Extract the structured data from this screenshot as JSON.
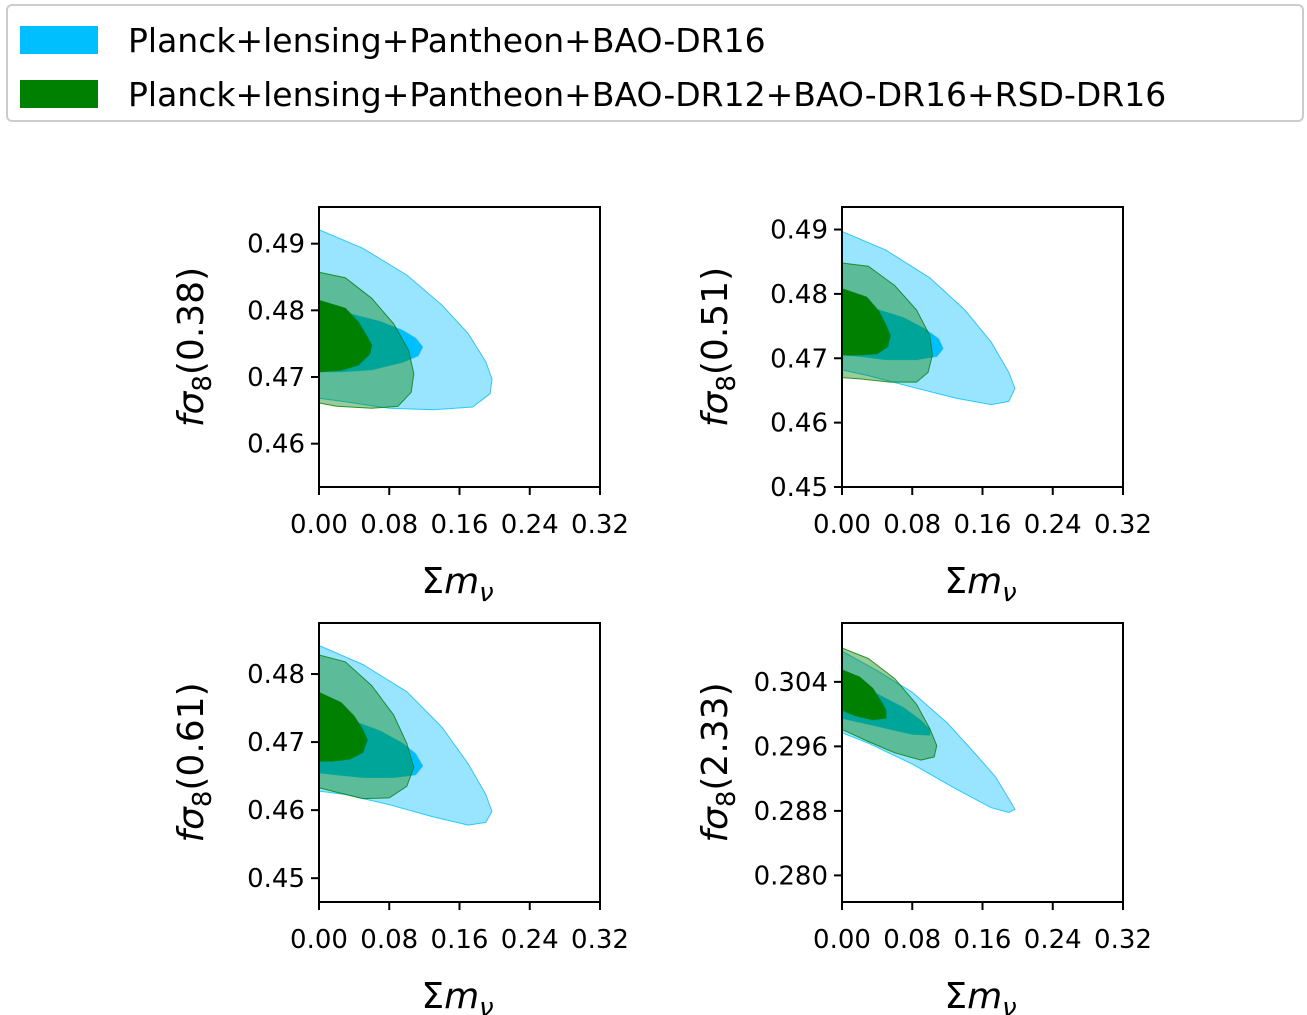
{
  "legend": {
    "items": [
      {
        "label": "Planck+lensing+Pantheon+BAO-DR16",
        "color": "#00bfff"
      },
      {
        "label": "Planck+lensing+Pantheon+BAO-DR12+BAO-DR16+RSD-DR16",
        "color": "#008000"
      }
    ]
  },
  "chart_data": [
    {
      "type": "contour",
      "xlabel": "Σm_ν",
      "ylabel": "fσ8(0.38)",
      "xlim": [
        0.0,
        0.32
      ],
      "ylim": [
        0.4535,
        0.4955
      ],
      "xticks": [
        "0.00",
        "0.08",
        "0.16",
        "0.24",
        "0.32"
      ],
      "yticks": [
        "0.46",
        "0.47",
        "0.48",
        "0.49"
      ],
      "contours": [
        {
          "series": "Planck+lensing+Pantheon+BAO-DR16",
          "level": "95%",
          "points": [
            [
              0,
              0.4921
            ],
            [
              0.05,
              0.4893
            ],
            [
              0.1,
              0.4853
            ],
            [
              0.14,
              0.4808
            ],
            [
              0.17,
              0.4765
            ],
            [
              0.19,
              0.4723
            ],
            [
              0.197,
              0.4697
            ],
            [
              0.195,
              0.4675
            ],
            [
              0.175,
              0.4655
            ],
            [
              0.13,
              0.4651
            ],
            [
              0.08,
              0.4653
            ],
            [
              0.03,
              0.4663
            ],
            [
              0,
              0.4668
            ]
          ]
        },
        {
          "series": "Planck+lensing+Pantheon+BAO-DR16",
          "level": "68%",
          "points": [
            [
              0,
              0.4805
            ],
            [
              0.035,
              0.4795
            ],
            [
              0.07,
              0.4783
            ],
            [
              0.095,
              0.477
            ],
            [
              0.11,
              0.4758
            ],
            [
              0.118,
              0.4745
            ],
            [
              0.113,
              0.4732
            ],
            [
              0.095,
              0.4722
            ],
            [
              0.06,
              0.4711
            ],
            [
              0.025,
              0.4708
            ],
            [
              0,
              0.4708
            ]
          ]
        },
        {
          "series": "Planck+lensing+Pantheon+BAO-DR12+BAO-DR16+RSD-DR16",
          "level": "95%",
          "points": [
            [
              0,
              0.4857
            ],
            [
              0.03,
              0.4849
            ],
            [
              0.06,
              0.4818
            ],
            [
              0.085,
              0.478
            ],
            [
              0.102,
              0.474
            ],
            [
              0.108,
              0.4705
            ],
            [
              0.105,
              0.4677
            ],
            [
              0.09,
              0.4656
            ],
            [
              0.06,
              0.4653
            ],
            [
              0.02,
              0.4656
            ],
            [
              0,
              0.4661
            ]
          ]
        },
        {
          "series": "Planck+lensing+Pantheon+BAO-DR12+BAO-DR16+RSD-DR16",
          "level": "68%",
          "points": [
            [
              0,
              0.4815
            ],
            [
              0.03,
              0.4803
            ],
            [
              0.045,
              0.4782
            ],
            [
              0.055,
              0.476
            ],
            [
              0.06,
              0.4748
            ],
            [
              0.058,
              0.4735
            ],
            [
              0.045,
              0.4718
            ],
            [
              0.025,
              0.471
            ],
            [
              0,
              0.4708
            ]
          ]
        }
      ]
    },
    {
      "type": "contour",
      "xlabel": "Σm_ν",
      "ylabel": "fσ8(0.51)",
      "xlim": [
        0.0,
        0.32
      ],
      "ylim": [
        0.45,
        0.4935
      ],
      "xticks": [
        "0.00",
        "0.08",
        "0.16",
        "0.24",
        "0.32"
      ],
      "yticks": [
        "0.45",
        "0.46",
        "0.47",
        "0.48",
        "0.49"
      ],
      "contours": [
        {
          "series": "Planck+lensing+Pantheon+BAO-DR16",
          "level": "95%",
          "points": [
            [
              0,
              0.4897
            ],
            [
              0.05,
              0.4868
            ],
            [
              0.1,
              0.4825
            ],
            [
              0.14,
              0.4775
            ],
            [
              0.17,
              0.4725
            ],
            [
              0.19,
              0.4678
            ],
            [
              0.197,
              0.4653
            ],
            [
              0.19,
              0.4633
            ],
            [
              0.17,
              0.4628
            ],
            [
              0.13,
              0.4638
            ],
            [
              0.08,
              0.4655
            ],
            [
              0.03,
              0.4673
            ],
            [
              0,
              0.4682
            ]
          ]
        },
        {
          "series": "Planck+lensing+Pantheon+BAO-DR16",
          "level": "68%",
          "points": [
            [
              0,
              0.4788
            ],
            [
              0.035,
              0.4778
            ],
            [
              0.07,
              0.4763
            ],
            [
              0.095,
              0.4745
            ],
            [
              0.11,
              0.473
            ],
            [
              0.115,
              0.4715
            ],
            [
              0.108,
              0.4703
            ],
            [
              0.085,
              0.4698
            ],
            [
              0.05,
              0.4698
            ],
            [
              0.02,
              0.4703
            ],
            [
              0,
              0.4705
            ]
          ]
        },
        {
          "series": "Planck+lensing+Pantheon+BAO-DR12+BAO-DR16+RSD-DR16",
          "level": "95%",
          "points": [
            [
              0,
              0.4848
            ],
            [
              0.03,
              0.4843
            ],
            [
              0.06,
              0.4813
            ],
            [
              0.085,
              0.4775
            ],
            [
              0.1,
              0.4735
            ],
            [
              0.103,
              0.4705
            ],
            [
              0.098,
              0.4678
            ],
            [
              0.085,
              0.4663
            ],
            [
              0.055,
              0.4663
            ],
            [
              0.02,
              0.4668
            ],
            [
              0,
              0.467
            ]
          ]
        },
        {
          "series": "Planck+lensing+Pantheon+BAO-DR12+BAO-DR16+RSD-DR16",
          "level": "68%",
          "points": [
            [
              0,
              0.4808
            ],
            [
              0.028,
              0.4795
            ],
            [
              0.042,
              0.4773
            ],
            [
              0.05,
              0.4752
            ],
            [
              0.055,
              0.4735
            ],
            [
              0.052,
              0.4718
            ],
            [
              0.04,
              0.4707
            ],
            [
              0.02,
              0.4705
            ],
            [
              0,
              0.4705
            ]
          ]
        }
      ]
    },
    {
      "type": "contour",
      "xlabel": "Σm_ν",
      "ylabel": "fσ8(0.61)",
      "xlim": [
        0.0,
        0.32
      ],
      "ylim": [
        0.4465,
        0.4875
      ],
      "xticks": [
        "0.00",
        "0.08",
        "0.16",
        "0.24",
        "0.32"
      ],
      "yticks": [
        "0.45",
        "0.46",
        "0.47",
        "0.48"
      ],
      "contours": [
        {
          "series": "Planck+lensing+Pantheon+BAO-DR16",
          "level": "95%",
          "points": [
            [
              0,
              0.4842
            ],
            [
              0.05,
              0.4814
            ],
            [
              0.1,
              0.4774
            ],
            [
              0.14,
              0.4722
            ],
            [
              0.17,
              0.4668
            ],
            [
              0.19,
              0.4623
            ],
            [
              0.197,
              0.4598
            ],
            [
              0.19,
              0.4582
            ],
            [
              0.17,
              0.4578
            ],
            [
              0.13,
              0.459
            ],
            [
              0.08,
              0.4608
            ],
            [
              0.03,
              0.4623
            ],
            [
              0,
              0.4628
            ]
          ]
        },
        {
          "series": "Planck+lensing+Pantheon+BAO-DR16",
          "level": "68%",
          "points": [
            [
              0,
              0.4745
            ],
            [
              0.035,
              0.4733
            ],
            [
              0.07,
              0.4716
            ],
            [
              0.095,
              0.4698
            ],
            [
              0.11,
              0.4683
            ],
            [
              0.118,
              0.4665
            ],
            [
              0.11,
              0.4652
            ],
            [
              0.085,
              0.4648
            ],
            [
              0.05,
              0.4648
            ],
            [
              0.02,
              0.4652
            ],
            [
              0,
              0.4655
            ]
          ]
        },
        {
          "series": "Planck+lensing+Pantheon+BAO-DR12+BAO-DR16+RSD-DR16",
          "level": "95%",
          "points": [
            [
              0,
              0.4828
            ],
            [
              0.03,
              0.4818
            ],
            [
              0.06,
              0.4783
            ],
            [
              0.085,
              0.474
            ],
            [
              0.1,
              0.4698
            ],
            [
              0.108,
              0.4663
            ],
            [
              0.1,
              0.4635
            ],
            [
              0.08,
              0.4618
            ],
            [
              0.05,
              0.4617
            ],
            [
              0.015,
              0.4628
            ],
            [
              0,
              0.4633
            ]
          ]
        },
        {
          "series": "Planck+lensing+Pantheon+BAO-DR12+BAO-DR16+RSD-DR16",
          "level": "68%",
          "points": [
            [
              0,
              0.4773
            ],
            [
              0.025,
              0.4758
            ],
            [
              0.04,
              0.4738
            ],
            [
              0.05,
              0.4718
            ],
            [
              0.055,
              0.4703
            ],
            [
              0.05,
              0.4685
            ],
            [
              0.035,
              0.4675
            ],
            [
              0.015,
              0.4672
            ],
            [
              0,
              0.4672
            ]
          ]
        }
      ]
    },
    {
      "type": "contour",
      "xlabel": "Σm_ν",
      "ylabel": "fσ8(2.33)",
      "xlim": [
        0.0,
        0.32
      ],
      "ylim": [
        0.2767,
        0.3113
      ],
      "xticks": [
        "0.00",
        "0.08",
        "0.16",
        "0.24",
        "0.32"
      ],
      "yticks": [
        "0.280",
        "0.288",
        "0.296",
        "0.304"
      ],
      "contours": [
        {
          "series": "Planck+lensing+Pantheon+BAO-DR16",
          "level": "95%",
          "points": [
            [
              0,
              0.3078
            ],
            [
              0.04,
              0.3054
            ],
            [
              0.08,
              0.3027
            ],
            [
              0.12,
              0.2989
            ],
            [
              0.15,
              0.2953
            ],
            [
              0.175,
              0.2922
            ],
            [
              0.19,
              0.2895
            ],
            [
              0.197,
              0.2882
            ],
            [
              0.19,
              0.2878
            ],
            [
              0.17,
              0.2884
            ],
            [
              0.13,
              0.2907
            ],
            [
              0.08,
              0.2938
            ],
            [
              0.03,
              0.2964
            ],
            [
              0,
              0.2977
            ]
          ]
        },
        {
          "series": "Planck+lensing+Pantheon+BAO-DR16",
          "level": "68%",
          "points": [
            [
              0,
              0.3038
            ],
            [
              0.04,
              0.3025
            ],
            [
              0.07,
              0.3008
            ],
            [
              0.09,
              0.2992
            ],
            [
              0.1,
              0.2981
            ],
            [
              0.1,
              0.2974
            ],
            [
              0.08,
              0.2975
            ],
            [
              0.04,
              0.2985
            ],
            [
              0,
              0.2995
            ]
          ]
        },
        {
          "series": "Planck+lensing+Pantheon+BAO-DR12+BAO-DR16+RSD-DR16",
          "level": "95%",
          "points": [
            [
              0,
              0.3082
            ],
            [
              0.03,
              0.3069
            ],
            [
              0.06,
              0.3044
            ],
            [
              0.085,
              0.3012
            ],
            [
              0.1,
              0.2982
            ],
            [
              0.108,
              0.2961
            ],
            [
              0.105,
              0.2947
            ],
            [
              0.09,
              0.2943
            ],
            [
              0.06,
              0.2952
            ],
            [
              0.03,
              0.2966
            ],
            [
              0,
              0.2981
            ]
          ]
        },
        {
          "series": "Planck+lensing+Pantheon+BAO-DR12+BAO-DR16+RSD-DR16",
          "level": "68%",
          "points": [
            [
              0,
              0.3055
            ],
            [
              0.02,
              0.3046
            ],
            [
              0.035,
              0.3032
            ],
            [
              0.045,
              0.3015
            ],
            [
              0.05,
              0.3005
            ],
            [
              0.05,
              0.2995
            ],
            [
              0.035,
              0.2993
            ],
            [
              0.015,
              0.2998
            ],
            [
              0,
              0.3005
            ]
          ]
        }
      ]
    }
  ]
}
